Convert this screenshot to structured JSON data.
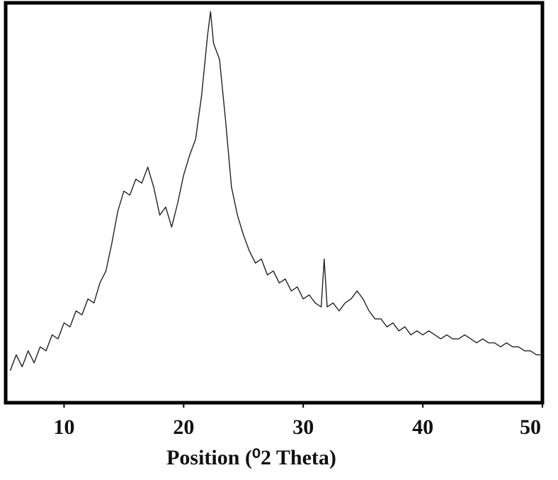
{
  "chart_data": {
    "type": "line",
    "x_label": "Position (⁰2 Theta)",
    "color": "#222222",
    "xlim": [
      5,
      50
    ],
    "xticks": [
      10,
      20,
      30,
      40,
      50
    ],
    "ylim": [
      0,
      100
    ],
    "x": [
      5.5,
      6,
      6.5,
      7,
      7.5,
      8,
      8.5,
      9,
      9.5,
      10,
      10.5,
      11,
      11.5,
      12,
      12.5,
      13,
      13.5,
      14,
      14.5,
      15,
      15.5,
      16,
      16.5,
      17,
      17.5,
      18,
      18.5,
      19,
      19.5,
      20,
      20.5,
      21,
      21.5,
      22,
      22.25,
      22.5,
      23,
      23.5,
      24,
      24.5,
      25,
      25.5,
      26,
      26.5,
      27,
      27.5,
      28,
      28.5,
      29,
      29.5,
      30,
      30.5,
      31,
      31.5,
      31.75,
      32,
      32.5,
      33,
      33.5,
      34,
      34.5,
      35,
      35.5,
      36,
      36.5,
      37,
      37.5,
      38,
      38.5,
      39,
      39.5,
      40,
      40.5,
      41,
      41.5,
      42,
      42.5,
      43,
      43.5,
      44,
      44.5,
      45,
      45.5,
      46,
      46.5,
      47,
      47.5,
      48,
      48.5,
      49,
      49.5,
      50
    ],
    "values": [
      8,
      12,
      9,
      13,
      10,
      14,
      13,
      17,
      16,
      20,
      19,
      23,
      22,
      26,
      25,
      30,
      33,
      40,
      48,
      53,
      52,
      56,
      55,
      59,
      54,
      47,
      49,
      44,
      50,
      57,
      62,
      66,
      77,
      92,
      98,
      90,
      86,
      71,
      54,
      47,
      42,
      38,
      35,
      36,
      32,
      33,
      30,
      31,
      28,
      29,
      26,
      27,
      25,
      24,
      36,
      24,
      25,
      23,
      25,
      26,
      28,
      26,
      23,
      21,
      21,
      19,
      20,
      18,
      19,
      17,
      18,
      17,
      18,
      17,
      16,
      17,
      16,
      16,
      17,
      16,
      15,
      16,
      15,
      15,
      14,
      15,
      14,
      14,
      13,
      13,
      12,
      12
    ]
  }
}
